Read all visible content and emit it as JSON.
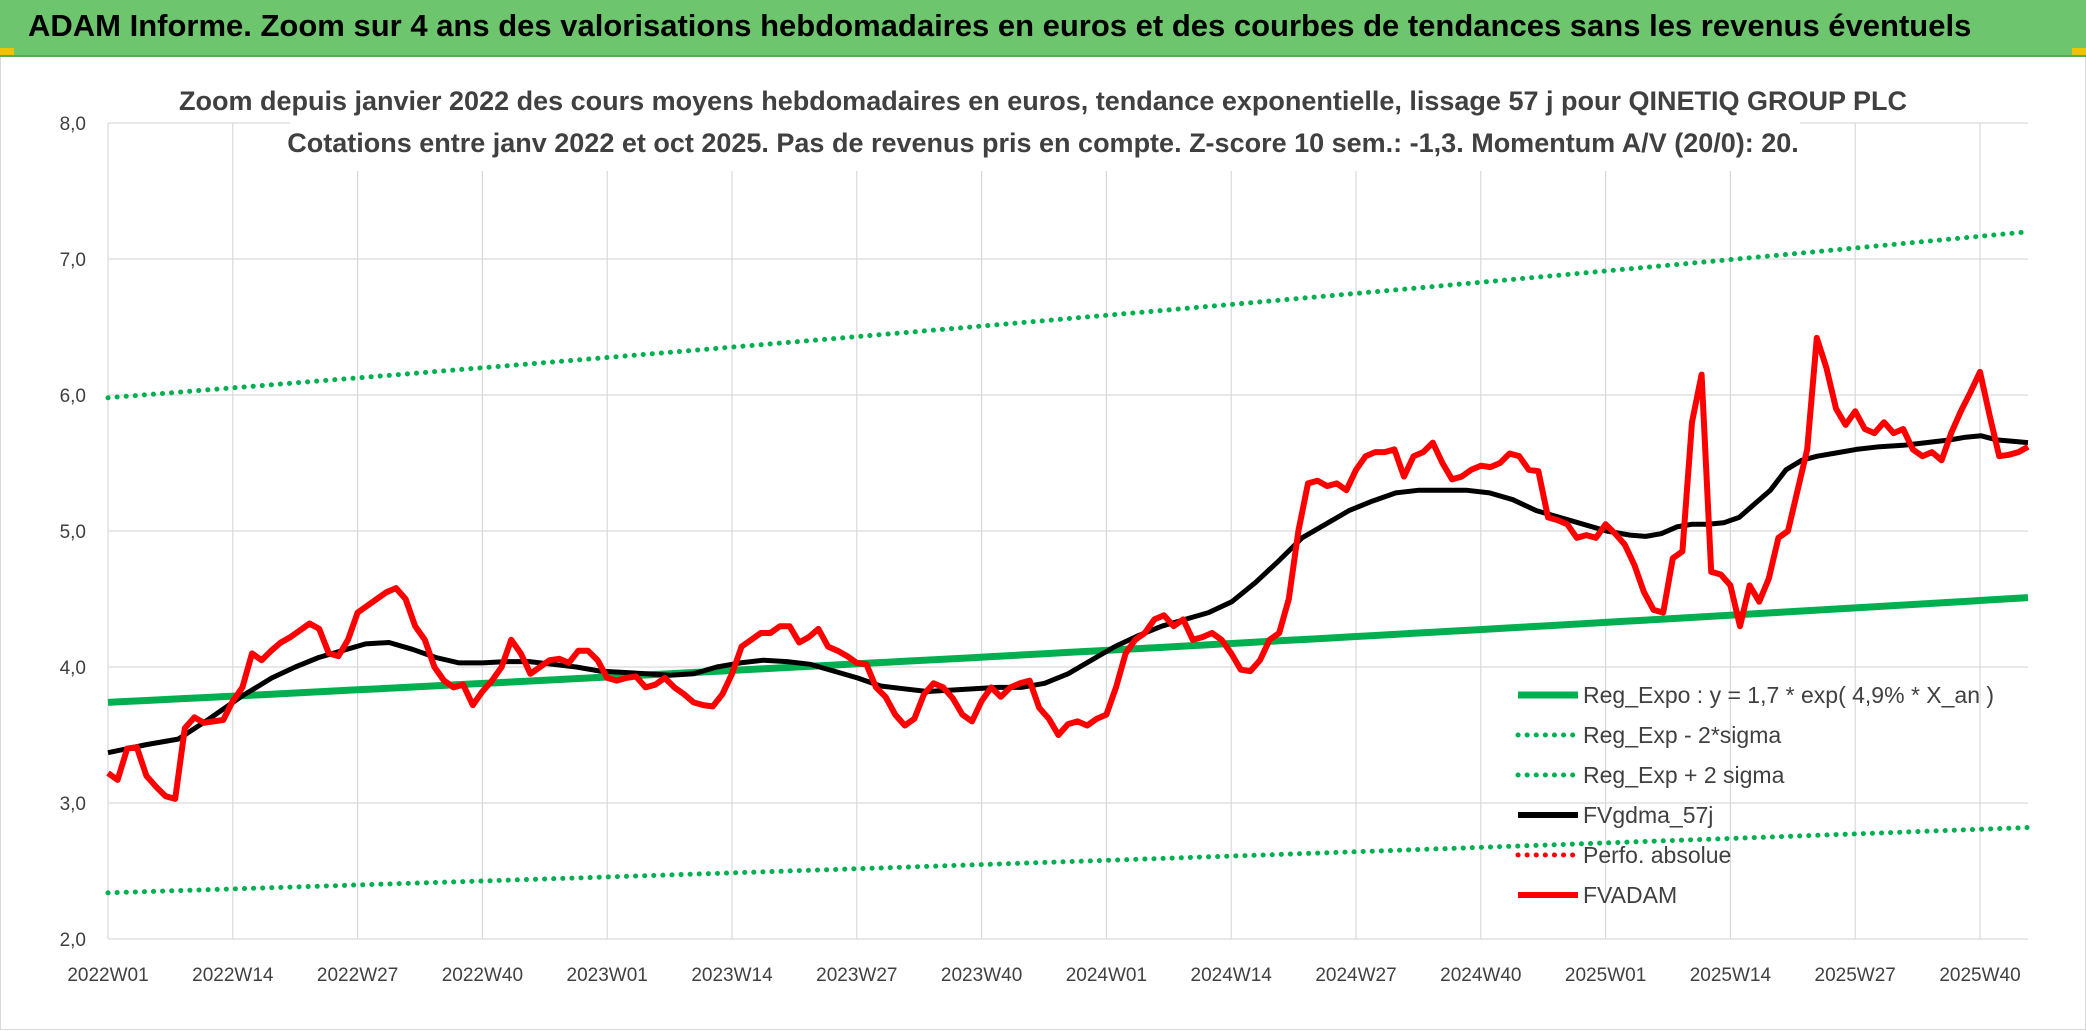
{
  "banner": {
    "title": "ADAM Informe. Zoom sur 4 ans des valorisations hebdomadaires en euros et des courbes de tendances sans les revenus éventuels"
  },
  "chart_data": {
    "type": "line",
    "title_line1": "Zoom depuis janvier 2022 des cours moyens hebdomadaires en euros, tendance exponentielle, lissage 57 j pour QINETIQ GROUP PLC",
    "title_line2": "Cotations entre janv 2022 et oct 2025. Pas de revenus pris en compte. Z-score 10 sem.: -1,3. Momentum A/V (20/0): 20.",
    "ylim": [
      2.0,
      8.0
    ],
    "yticks": [
      "2,0",
      "3,0",
      "4,0",
      "5,0",
      "6,0",
      "7,0",
      "8,0"
    ],
    "xticks": [
      "2022W01",
      "2022W14",
      "2022W27",
      "2022W40",
      "2023W01",
      "2023W14",
      "2023W27",
      "2023W40",
      "2024W01",
      "2024W14",
      "2024W27",
      "2024W40",
      "2025W01",
      "2025W14",
      "2025W27",
      "2025W40"
    ],
    "n_weeks": 201,
    "legend": [
      {
        "key": "reg",
        "label": "Reg_Expo : y = 1,7 * exp( 4,9% *  X_an )",
        "color": "#00b050",
        "style": "solid"
      },
      {
        "key": "lower",
        "label": "Reg_Exp - 2*sigma",
        "color": "#00b050",
        "style": "dotted"
      },
      {
        "key": "upper",
        "label": "Reg_Exp + 2 sigma",
        "color": "#00b050",
        "style": "dotted"
      },
      {
        "key": "ma",
        "label": "FVgdma_57j",
        "color": "#000000",
        "style": "solid"
      },
      {
        "key": "perf",
        "label": "Perfo. absolue",
        "color": "#ff0000",
        "style": "dotted"
      },
      {
        "key": "fvadam",
        "label": "FVADAM",
        "color": "#ff0000",
        "style": "solid"
      }
    ],
    "series": {
      "reg": {
        "start": 3.74,
        "end": 4.51
      },
      "lower": {
        "start": 2.34,
        "end": 2.82
      },
      "upper": {
        "start": 5.98,
        "end": 7.2
      },
      "ma": [
        [
          0,
          3.37
        ],
        [
          5,
          3.43
        ],
        [
          9,
          3.47
        ],
        [
          13,
          3.62
        ],
        [
          17,
          3.78
        ],
        [
          21,
          3.92
        ],
        [
          24,
          4.0
        ],
        [
          27,
          4.07
        ],
        [
          30,
          4.12
        ],
        [
          33,
          4.17
        ],
        [
          36,
          4.18
        ],
        [
          39,
          4.13
        ],
        [
          42,
          4.07
        ],
        [
          45,
          4.03
        ],
        [
          48,
          4.03
        ],
        [
          51,
          4.04
        ],
        [
          54,
          4.04
        ],
        [
          57,
          4.02
        ],
        [
          60,
          4.0
        ],
        [
          63,
          3.97
        ],
        [
          66,
          3.96
        ],
        [
          69,
          3.95
        ],
        [
          72,
          3.94
        ],
        [
          75,
          3.95
        ],
        [
          78,
          4.0
        ],
        [
          81,
          4.03
        ],
        [
          84,
          4.05
        ],
        [
          87,
          4.04
        ],
        [
          90,
          4.02
        ],
        [
          93,
          3.97
        ],
        [
          96,
          3.92
        ],
        [
          99,
          3.86
        ],
        [
          102,
          3.84
        ],
        [
          105,
          3.82
        ],
        [
          108,
          3.83
        ],
        [
          111,
          3.84
        ],
        [
          114,
          3.85
        ],
        [
          117,
          3.85
        ],
        [
          120,
          3.88
        ],
        [
          123,
          3.95
        ],
        [
          126,
          4.05
        ],
        [
          129,
          4.15
        ],
        [
          132,
          4.23
        ],
        [
          135,
          4.3
        ],
        [
          138,
          4.35
        ],
        [
          141,
          4.4
        ],
        [
          144,
          4.48
        ],
        [
          147,
          4.62
        ],
        [
          150,
          4.78
        ],
        [
          153,
          4.95
        ],
        [
          156,
          5.05
        ],
        [
          159,
          5.15
        ],
        [
          162,
          5.22
        ],
        [
          165,
          5.28
        ],
        [
          168,
          5.3
        ],
        [
          171,
          5.3
        ],
        [
          174,
          5.3
        ],
        [
          177,
          5.28
        ],
        [
          180,
          5.23
        ],
        [
          183,
          5.15
        ],
        [
          186,
          5.1
        ],
        [
          189,
          5.05
        ],
        [
          192,
          5.0
        ],
        [
          195,
          4.97
        ],
        [
          197,
          4.96
        ],
        [
          199,
          4.98
        ],
        [
          201,
          5.03
        ],
        [
          203,
          5.05
        ],
        [
          205,
          5.05
        ],
        [
          207,
          5.06
        ],
        [
          209,
          5.1
        ],
        [
          211,
          5.2
        ],
        [
          213,
          5.3
        ],
        [
          215,
          5.45
        ],
        [
          217,
          5.52
        ],
        [
          219,
          5.55
        ],
        [
          221,
          5.57
        ],
        [
          224,
          5.6
        ],
        [
          227,
          5.62
        ],
        [
          230,
          5.63
        ],
        [
          233,
          5.65
        ],
        [
          236,
          5.67
        ],
        [
          238,
          5.69
        ],
        [
          240,
          5.7
        ],
        [
          242,
          5.67
        ],
        [
          244,
          5.66
        ],
        [
          246,
          5.65
        ]
      ],
      "fvadam": [
        [
          0,
          3.22
        ],
        [
          1,
          3.17
        ],
        [
          2,
          3.4
        ],
        [
          3,
          3.41
        ],
        [
          4,
          3.2
        ],
        [
          5,
          3.12
        ],
        [
          6,
          3.05
        ],
        [
          7,
          3.03
        ],
        [
          8,
          3.55
        ],
        [
          9,
          3.63
        ],
        [
          10,
          3.59
        ],
        [
          11,
          3.6
        ],
        [
          12,
          3.61
        ],
        [
          13,
          3.75
        ],
        [
          14,
          3.85
        ],
        [
          15,
          4.1
        ],
        [
          16,
          4.05
        ],
        [
          17,
          4.12
        ],
        [
          18,
          4.18
        ],
        [
          19,
          4.22
        ],
        [
          20,
          4.27
        ],
        [
          21,
          4.32
        ],
        [
          22,
          4.28
        ],
        [
          23,
          4.1
        ],
        [
          24,
          4.08
        ],
        [
          25,
          4.2
        ],
        [
          26,
          4.4
        ],
        [
          27,
          4.45
        ],
        [
          28,
          4.5
        ],
        [
          29,
          4.55
        ],
        [
          30,
          4.58
        ],
        [
          31,
          4.5
        ],
        [
          32,
          4.3
        ],
        [
          33,
          4.2
        ],
        [
          34,
          4.0
        ],
        [
          35,
          3.9
        ],
        [
          36,
          3.85
        ],
        [
          37,
          3.87
        ],
        [
          38,
          3.72
        ],
        [
          39,
          3.82
        ],
        [
          40,
          3.9
        ],
        [
          41,
          4.0
        ],
        [
          42,
          4.2
        ],
        [
          43,
          4.1
        ],
        [
          44,
          3.95
        ],
        [
          45,
          4.0
        ],
        [
          46,
          4.05
        ],
        [
          47,
          4.06
        ],
        [
          48,
          4.03
        ],
        [
          49,
          4.12
        ],
        [
          50,
          4.12
        ],
        [
          51,
          4.05
        ],
        [
          52,
          3.92
        ],
        [
          53,
          3.9
        ],
        [
          54,
          3.92
        ],
        [
          55,
          3.93
        ],
        [
          56,
          3.85
        ],
        [
          57,
          3.87
        ],
        [
          58,
          3.92
        ],
        [
          59,
          3.85
        ],
        [
          60,
          3.8
        ],
        [
          61,
          3.74
        ],
        [
          62,
          3.72
        ],
        [
          63,
          3.71
        ],
        [
          64,
          3.8
        ],
        [
          65,
          3.95
        ],
        [
          66,
          4.15
        ],
        [
          67,
          4.2
        ],
        [
          68,
          4.25
        ],
        [
          69,
          4.25
        ],
        [
          70,
          4.3
        ],
        [
          71,
          4.3
        ],
        [
          72,
          4.18
        ],
        [
          73,
          4.22
        ],
        [
          74,
          4.28
        ],
        [
          75,
          4.15
        ],
        [
          76,
          4.12
        ],
        [
          77,
          4.08
        ],
        [
          78,
          4.03
        ],
        [
          79,
          4.02
        ],
        [
          80,
          3.85
        ],
        [
          81,
          3.78
        ],
        [
          82,
          3.65
        ],
        [
          83,
          3.57
        ],
        [
          84,
          3.62
        ],
        [
          85,
          3.8
        ],
        [
          86,
          3.88
        ],
        [
          87,
          3.85
        ],
        [
          88,
          3.77
        ],
        [
          89,
          3.65
        ],
        [
          90,
          3.6
        ],
        [
          91,
          3.75
        ],
        [
          92,
          3.85
        ],
        [
          93,
          3.78
        ],
        [
          94,
          3.85
        ],
        [
          95,
          3.88
        ],
        [
          96,
          3.9
        ],
        [
          97,
          3.7
        ],
        [
          98,
          3.62
        ],
        [
          99,
          3.5
        ],
        [
          100,
          3.58
        ],
        [
          101,
          3.6
        ],
        [
          102,
          3.57
        ],
        [
          103,
          3.62
        ],
        [
          104,
          3.65
        ],
        [
          105,
          3.85
        ],
        [
          106,
          4.1
        ],
        [
          107,
          4.2
        ],
        [
          108,
          4.25
        ],
        [
          109,
          4.35
        ],
        [
          110,
          4.38
        ],
        [
          111,
          4.3
        ],
        [
          112,
          4.35
        ],
        [
          113,
          4.2
        ],
        [
          114,
          4.22
        ],
        [
          115,
          4.25
        ],
        [
          116,
          4.2
        ],
        [
          117,
          4.1
        ],
        [
          118,
          3.98
        ],
        [
          119,
          3.97
        ],
        [
          120,
          4.05
        ],
        [
          121,
          4.2
        ],
        [
          122,
          4.25
        ],
        [
          123,
          4.5
        ],
        [
          124,
          5.0
        ],
        [
          125,
          5.35
        ],
        [
          126,
          5.37
        ],
        [
          127,
          5.33
        ],
        [
          128,
          5.35
        ],
        [
          129,
          5.3
        ],
        [
          130,
          5.45
        ],
        [
          131,
          5.55
        ],
        [
          132,
          5.58
        ],
        [
          133,
          5.58
        ],
        [
          134,
          5.6
        ],
        [
          135,
          5.4
        ],
        [
          136,
          5.55
        ],
        [
          137,
          5.58
        ],
        [
          138,
          5.65
        ],
        [
          139,
          5.5
        ],
        [
          140,
          5.38
        ],
        [
          141,
          5.4
        ],
        [
          142,
          5.45
        ],
        [
          143,
          5.48
        ],
        [
          144,
          5.47
        ],
        [
          145,
          5.5
        ],
        [
          146,
          5.57
        ],
        [
          147,
          5.55
        ],
        [
          148,
          5.45
        ],
        [
          149,
          5.44
        ],
        [
          150,
          5.1
        ],
        [
          151,
          5.08
        ],
        [
          152,
          5.05
        ],
        [
          153,
          4.95
        ],
        [
          154,
          4.97
        ],
        [
          155,
          4.95
        ],
        [
          156,
          5.05
        ],
        [
          157,
          4.98
        ],
        [
          158,
          4.9
        ],
        [
          159,
          4.75
        ],
        [
          160,
          4.55
        ],
        [
          161,
          4.42
        ],
        [
          162,
          4.4
        ],
        [
          163,
          4.8
        ],
        [
          164,
          4.85
        ],
        [
          165,
          5.8
        ],
        [
          166,
          6.15
        ],
        [
          167,
          4.7
        ],
        [
          168,
          4.68
        ],
        [
          169,
          4.6
        ],
        [
          170,
          4.3
        ],
        [
          171,
          4.6
        ],
        [
          172,
          4.48
        ],
        [
          173,
          4.65
        ],
        [
          174,
          4.95
        ],
        [
          175,
          5.0
        ],
        [
          176,
          5.3
        ],
        [
          177,
          5.6
        ],
        [
          178,
          6.42
        ],
        [
          179,
          6.2
        ],
        [
          180,
          5.9
        ],
        [
          181,
          5.78
        ],
        [
          182,
          5.88
        ],
        [
          183,
          5.75
        ],
        [
          184,
          5.72
        ],
        [
          185,
          5.8
        ],
        [
          186,
          5.72
        ],
        [
          187,
          5.75
        ],
        [
          188,
          5.6
        ],
        [
          189,
          5.55
        ],
        [
          190,
          5.58
        ],
        [
          191,
          5.52
        ],
        [
          192,
          5.72
        ],
        [
          193,
          5.88
        ],
        [
          194,
          6.02
        ],
        [
          195,
          6.17
        ],
        [
          196,
          5.85
        ],
        [
          197,
          5.55
        ],
        [
          198,
          5.56
        ],
        [
          199,
          5.58
        ],
        [
          200,
          5.62
        ]
      ]
    }
  }
}
